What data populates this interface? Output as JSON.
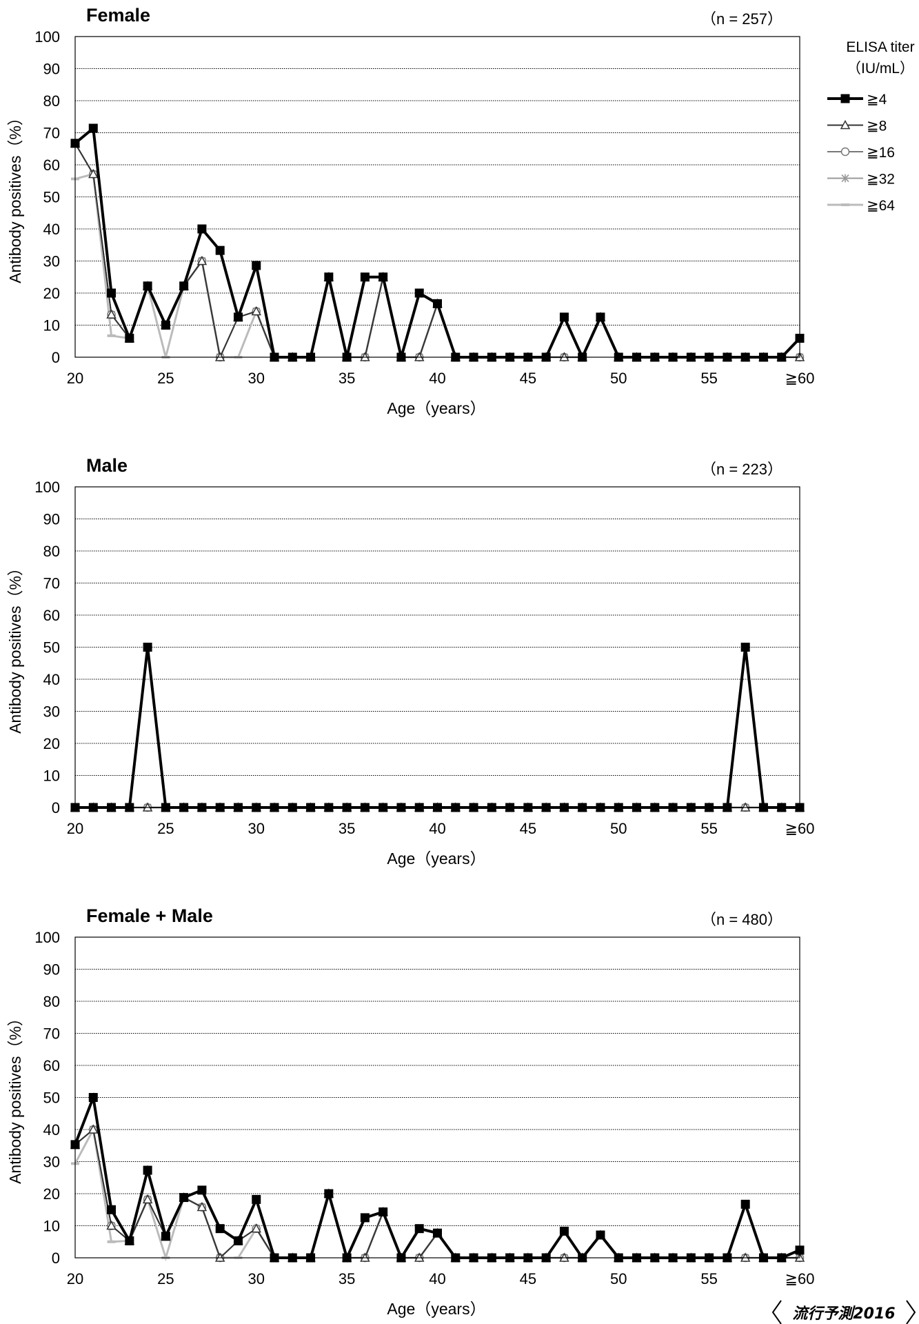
{
  "chart_data": [
    {
      "type": "line",
      "title": "Female",
      "n_label": "（n = 257）",
      "xlabel": "Age（years）",
      "ylabel": "Antibody positives（%）",
      "ylim": [
        0,
        100
      ],
      "yticks": [
        "0",
        "10",
        "20",
        "30",
        "40",
        "50",
        "60",
        "70",
        "80",
        "90",
        "100"
      ],
      "xticks": [
        "20",
        "25",
        "30",
        "35",
        "40",
        "45",
        "50",
        "55",
        "≧60"
      ],
      "x": [
        "20",
        "21",
        "22",
        "23",
        "24",
        "25",
        "26",
        "27",
        "28",
        "29",
        "30",
        "31",
        "32",
        "33",
        "34",
        "35",
        "36",
        "37",
        "38",
        "39",
        "40",
        "41",
        "42",
        "43",
        "44",
        "45",
        "46",
        "47",
        "48",
        "49",
        "50",
        "51",
        "52",
        "53",
        "54",
        "55",
        "56",
        "57",
        "58",
        "59",
        "≧60"
      ],
      "grid": true,
      "series": [
        {
          "name": "≧4",
          "values": [
            66.7,
            71.4,
            20,
            5.9,
            22.2,
            10,
            22.2,
            40,
            33.3,
            12.5,
            28.6,
            0,
            0,
            0,
            25,
            0,
            25,
            25,
            0,
            20,
            16.7,
            0,
            0,
            0,
            0,
            0,
            0,
            12.5,
            0,
            12.5,
            0,
            0,
            0,
            0,
            0,
            0,
            0,
            0,
            0,
            0,
            5.9
          ]
        },
        {
          "name": "≧8",
          "values": [
            66.7,
            57.1,
            13.3,
            5.9,
            22.2,
            10,
            22.2,
            30,
            0,
            12.5,
            14.3,
            0,
            0,
            0,
            25,
            0,
            0,
            25,
            0,
            0,
            16.7,
            0,
            0,
            0,
            0,
            0,
            0,
            0,
            0,
            12.5,
            0,
            0,
            0,
            0,
            0,
            0,
            0,
            0,
            0,
            0,
            0
          ]
        },
        {
          "name": "≧16",
          "values": [
            66.7,
            57.1,
            13.3,
            5.9,
            22.2,
            10,
            22.2,
            30,
            0,
            12.5,
            14.3,
            0,
            0,
            0,
            25,
            0,
            0,
            25,
            0,
            0,
            16.7,
            0,
            0,
            0,
            0,
            0,
            0,
            0,
            0,
            12.5,
            0,
            0,
            0,
            0,
            0,
            0,
            0,
            0,
            0,
            0,
            0
          ]
        },
        {
          "name": "≧32",
          "values": [
            66.7,
            57.1,
            13.3,
            5.9,
            22.2,
            10,
            22.2,
            30,
            0,
            12.5,
            14.3,
            0,
            0,
            0,
            25,
            0,
            0,
            25,
            0,
            0,
            16.7,
            0,
            0,
            0,
            0,
            0,
            0,
            0,
            0,
            12.5,
            0,
            0,
            0,
            0,
            0,
            0,
            0,
            0,
            0,
            0,
            0
          ]
        },
        {
          "name": "≧64",
          "values": [
            55.6,
            57.1,
            6.7,
            5.9,
            22.2,
            0,
            22.2,
            30,
            0,
            0,
            14.3,
            0,
            0,
            0,
            25,
            0,
            0,
            25,
            0,
            0,
            16.7,
            0,
            0,
            0,
            0,
            0,
            0,
            0,
            0,
            12.5,
            0,
            0,
            0,
            0,
            0,
            0,
            0,
            0,
            0,
            0,
            0
          ]
        }
      ]
    },
    {
      "type": "line",
      "title": "Male",
      "n_label": "（n = 223）",
      "xlabel": "Age（years）",
      "ylabel": "Antibody positives（%）",
      "ylim": [
        0,
        100
      ],
      "yticks": [
        "0",
        "10",
        "20",
        "30",
        "40",
        "50",
        "60",
        "70",
        "80",
        "90",
        "100"
      ],
      "xticks": [
        "20",
        "25",
        "30",
        "35",
        "40",
        "45",
        "50",
        "55",
        "≧60"
      ],
      "x": [
        "20",
        "21",
        "22",
        "23",
        "24",
        "25",
        "26",
        "27",
        "28",
        "29",
        "30",
        "31",
        "32",
        "33",
        "34",
        "35",
        "36",
        "37",
        "38",
        "39",
        "40",
        "41",
        "42",
        "43",
        "44",
        "45",
        "46",
        "47",
        "48",
        "49",
        "50",
        "51",
        "52",
        "53",
        "54",
        "55",
        "56",
        "57",
        "58",
        "59",
        "≧60"
      ],
      "grid": true,
      "series": [
        {
          "name": "≧4",
          "values": [
            0,
            0,
            0,
            0,
            50,
            0,
            0,
            0,
            0,
            0,
            0,
            0,
            0,
            0,
            0,
            0,
            0,
            0,
            0,
            0,
            0,
            0,
            0,
            0,
            0,
            0,
            0,
            0,
            0,
            0,
            0,
            0,
            0,
            0,
            0,
            0,
            0,
            50,
            0,
            0,
            0
          ]
        },
        {
          "name": "≧8",
          "values": [
            0,
            0,
            0,
            0,
            0,
            0,
            0,
            0,
            0,
            0,
            0,
            0,
            0,
            0,
            0,
            0,
            0,
            0,
            0,
            0,
            0,
            0,
            0,
            0,
            0,
            0,
            0,
            0,
            0,
            0,
            0,
            0,
            0,
            0,
            0,
            0,
            0,
            0,
            0,
            0,
            0
          ]
        },
        {
          "name": "≧16",
          "values": [
            0,
            0,
            0,
            0,
            0,
            0,
            0,
            0,
            0,
            0,
            0,
            0,
            0,
            0,
            0,
            0,
            0,
            0,
            0,
            0,
            0,
            0,
            0,
            0,
            0,
            0,
            0,
            0,
            0,
            0,
            0,
            0,
            0,
            0,
            0,
            0,
            0,
            0,
            0,
            0,
            0
          ]
        },
        {
          "name": "≧32",
          "values": [
            0,
            0,
            0,
            0,
            0,
            0,
            0,
            0,
            0,
            0,
            0,
            0,
            0,
            0,
            0,
            0,
            0,
            0,
            0,
            0,
            0,
            0,
            0,
            0,
            0,
            0,
            0,
            0,
            0,
            0,
            0,
            0,
            0,
            0,
            0,
            0,
            0,
            0,
            0,
            0,
            0
          ]
        },
        {
          "name": "≧64",
          "values": [
            0,
            0,
            0,
            0,
            0,
            0,
            0,
            0,
            0,
            0,
            0,
            0,
            0,
            0,
            0,
            0,
            0,
            0,
            0,
            0,
            0,
            0,
            0,
            0,
            0,
            0,
            0,
            0,
            0,
            0,
            0,
            0,
            0,
            0,
            0,
            0,
            0,
            0,
            0,
            0,
            0
          ]
        }
      ]
    },
    {
      "type": "line",
      "title": "Female + Male",
      "n_label": "（n = 480）",
      "xlabel": "Age（years）",
      "ylabel": "Antibody positives（%）",
      "ylim": [
        0,
        100
      ],
      "yticks": [
        "0",
        "10",
        "20",
        "30",
        "40",
        "50",
        "60",
        "70",
        "80",
        "90",
        "100"
      ],
      "xticks": [
        "20",
        "25",
        "30",
        "35",
        "40",
        "45",
        "50",
        "55",
        "≧60"
      ],
      "x": [
        "20",
        "21",
        "22",
        "23",
        "24",
        "25",
        "26",
        "27",
        "28",
        "29",
        "30",
        "31",
        "32",
        "33",
        "34",
        "35",
        "36",
        "37",
        "38",
        "39",
        "40",
        "41",
        "42",
        "43",
        "44",
        "45",
        "46",
        "47",
        "48",
        "49",
        "50",
        "51",
        "52",
        "53",
        "54",
        "55",
        "56",
        "57",
        "58",
        "59",
        "≧60"
      ],
      "grid": true,
      "series": [
        {
          "name": "≧4",
          "values": [
            35.3,
            50,
            15,
            5.3,
            27.3,
            6.7,
            18.8,
            21.1,
            9.1,
            5.3,
            18.2,
            0,
            0,
            0,
            20,
            0,
            12.5,
            14.3,
            0,
            9.1,
            7.7,
            0,
            0,
            0,
            0,
            0,
            0,
            8.3,
            0,
            7.1,
            0,
            0,
            0,
            0,
            0,
            0,
            0,
            16.7,
            0,
            0,
            2.4
          ]
        },
        {
          "name": "≧8",
          "values": [
            35.3,
            40,
            10,
            5.3,
            18.2,
            6.7,
            18.8,
            15.8,
            0,
            5.3,
            9.1,
            0,
            0,
            0,
            20,
            0,
            0,
            14.3,
            0,
            0,
            7.7,
            0,
            0,
            0,
            0,
            0,
            0,
            0,
            0,
            7.1,
            0,
            0,
            0,
            0,
            0,
            0,
            0,
            0,
            0,
            0,
            0
          ]
        },
        {
          "name": "≧16",
          "values": [
            35.3,
            40,
            10,
            5.3,
            18.2,
            6.7,
            18.8,
            15.8,
            0,
            5.3,
            9.1,
            0,
            0,
            0,
            20,
            0,
            0,
            14.3,
            0,
            0,
            7.7,
            0,
            0,
            0,
            0,
            0,
            0,
            0,
            0,
            7.1,
            0,
            0,
            0,
            0,
            0,
            0,
            0,
            0,
            0,
            0,
            0
          ]
        },
        {
          "name": "≧32",
          "values": [
            35.3,
            40,
            10,
            5.3,
            18.2,
            6.7,
            18.8,
            15.8,
            0,
            5.3,
            9.1,
            0,
            0,
            0,
            20,
            0,
            0,
            14.3,
            0,
            0,
            7.7,
            0,
            0,
            0,
            0,
            0,
            0,
            0,
            0,
            7.1,
            0,
            0,
            0,
            0,
            0,
            0,
            0,
            0,
            0,
            0,
            0
          ]
        },
        {
          "name": "≧64",
          "values": [
            29.4,
            40,
            5,
            5.3,
            18.2,
            0,
            18.8,
            15.8,
            0,
            0,
            9.1,
            0,
            0,
            0,
            20,
            0,
            0,
            14.3,
            0,
            0,
            7.7,
            0,
            0,
            0,
            0,
            0,
            0,
            0,
            0,
            7.1,
            0,
            0,
            0,
            0,
            0,
            0,
            0,
            0,
            0,
            0,
            0
          ]
        }
      ]
    }
  ],
  "legend": {
    "title_line1": "ELISA titer",
    "title_line2": "（IU/mL）",
    "placement": "right of top chart",
    "items": [
      {
        "label": "≧4",
        "color": "#000000",
        "marker": "filled-square"
      },
      {
        "label": "≧8",
        "color": "#333333",
        "marker": "open-triangle"
      },
      {
        "label": "≧16",
        "color": "#777777",
        "marker": "open-circle"
      },
      {
        "label": "≧32",
        "color": "#999999",
        "marker": "asterisk"
      },
      {
        "label": "≧64",
        "color": "#bbbbbb",
        "marker": "dash"
      }
    ]
  },
  "brand": "流行予測2016"
}
